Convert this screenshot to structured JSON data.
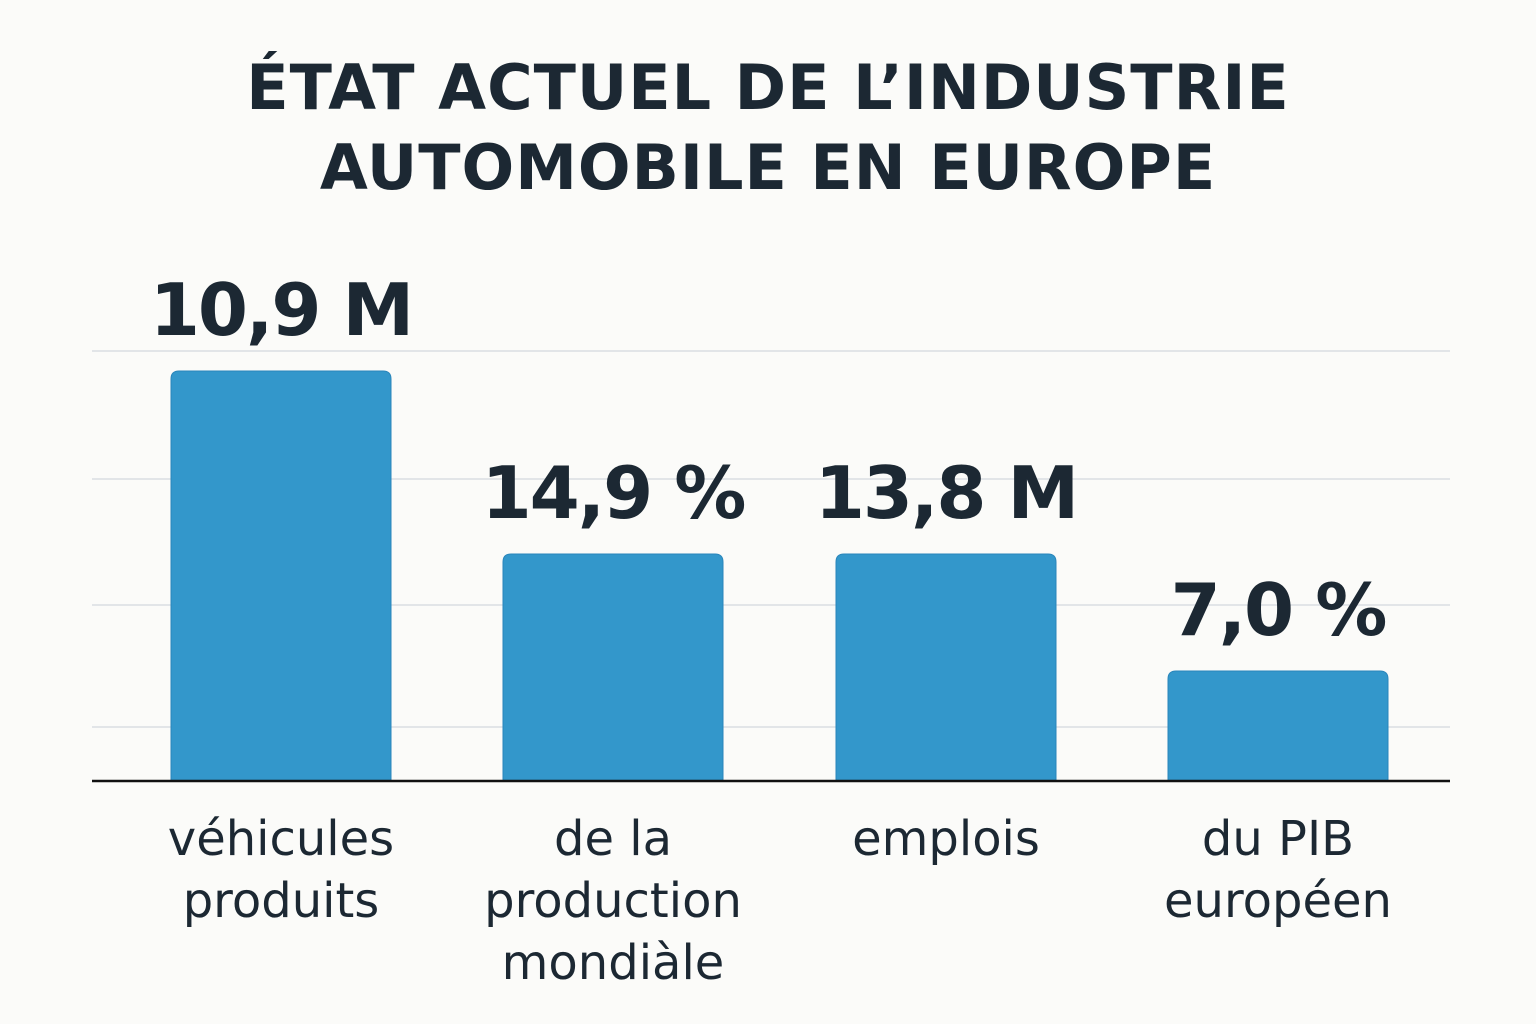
{
  "chart_data": {
    "type": "bar",
    "title": [
      "ÉTAT ACTUEL DE L’INDUSTRIE",
      "AUTOMOBILE EN EUROPE"
    ],
    "categories": [
      [
        "véhicules",
        "produits"
      ],
      [
        "de la",
        "production",
        "mondiàle"
      ],
      [
        "emplois"
      ],
      [
        "du PIB",
        "européen"
      ]
    ],
    "values": [
      10.9,
      14.9,
      13.8,
      7.0
    ],
    "units": [
      "M",
      "%",
      "M",
      "%"
    ],
    "data_labels": [
      "10,9 M",
      "14,9 %",
      "13,8 M",
      "7,0 %"
    ],
    "xlabel": "",
    "ylabel": "",
    "grid": true,
    "bar_color": "#3397cb",
    "text_color": "#1c2833"
  }
}
